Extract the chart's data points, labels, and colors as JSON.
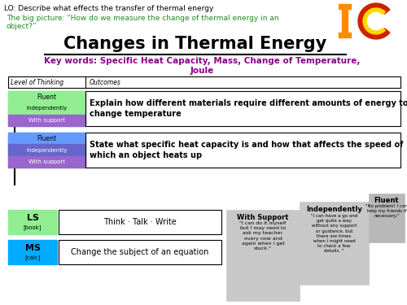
{
  "lo_text": "LO: Describe what effects the transfer of thermal energy",
  "big_picture_line1": "The big picture: “How do we measure the change of thermal energy in an",
  "big_picture_line2": "object?”",
  "title": "Changes in Thermal Energy",
  "key_words_line1": "Key words: Specific Heat Capacity, Mass, Change of Temperature,",
  "key_words_line2": "Joule",
  "table_header_left": "Level of Thinking",
  "table_header_right": "Outcomes",
  "outcome1": "Explain how different materials require different amounts of energy to\nchange temperature",
  "outcome2": "State what specific heat capacity is and how that affects the speed of\nwhich an object heats up",
  "fluent_color_row1": "#90EE90",
  "independently_color_row1": "#90EE90",
  "with_support_color_row1": "#9966CC",
  "fluent_color_row2": "#6699FF",
  "independently_color_row2": "#6666CC",
  "with_support_color_row2": "#9966CC",
  "ls_color": "#90EE90",
  "ms_color": "#00AAFF",
  "task1": "Think · Talk · Write",
  "task2": "Change the subject of an equation",
  "with_support_title": "With Support",
  "with_support_text": "\"I can do it myself\nbut I may need to\nask my teacher\nevery now and\nagain when I get\nstuck.\"",
  "independently_title": "Independently",
  "independently_text": "\"I can have a go and\nget quite a way\nwithout any support\nor guidance, but\nthere are times\nwhen I might need\nto check a few\ndetails. \"",
  "fluent_title": "Fluent",
  "fluent_text": "\"No problem! I can\nhelp my friends if\nnecessary.\"",
  "ic_orange": "#FF8C00",
  "ic_red": "#CC2200",
  "ic_yellow": "#FFD700",
  "bg_color": "#FFFFFF",
  "lo_color": "#000000",
  "big_picture_color": "#228B22",
  "key_words_color": "#8B008B",
  "title_color": "#000000"
}
